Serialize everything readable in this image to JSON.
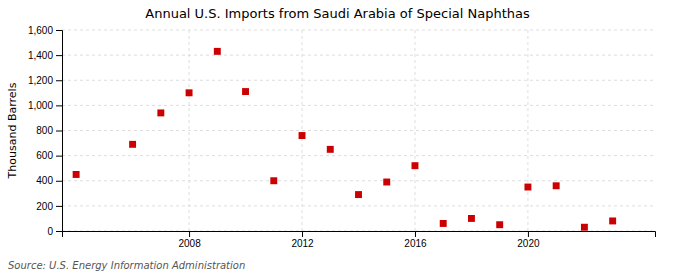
{
  "chart_data": {
    "type": "scatter",
    "title": "Annual U.S. Imports from Saudi Arabia of Special Naphthas",
    "ylabel": "Thousand Barrels",
    "source": "Source: U.S. Energy Information Administration",
    "x": [
      2004,
      2006,
      2007,
      2008,
      2009,
      2010,
      2011,
      2012,
      2013,
      2014,
      2015,
      2016,
      2017,
      2018,
      2019,
      2020,
      2021,
      2022,
      2023
    ],
    "values": [
      450,
      690,
      940,
      1100,
      1430,
      1110,
      400,
      760,
      650,
      290,
      390,
      520,
      60,
      100,
      50,
      350,
      360,
      30,
      80
    ],
    "color": "#cc0000",
    "marker": "square",
    "xlim": [
      2003.5,
      2024.5
    ],
    "xticks": [
      2008,
      2012,
      2016,
      2020
    ],
    "ylim": [
      0,
      1600
    ],
    "yticks": [
      0,
      200,
      400,
      600,
      800,
      {
        "value": 1000,
        "label": "1,000"
      },
      {
        "value": 1200,
        "label": "1,200"
      },
      {
        "value": 1400,
        "label": "1,400"
      },
      {
        "value": 1600,
        "label": "1,600"
      }
    ],
    "grid": true
  }
}
